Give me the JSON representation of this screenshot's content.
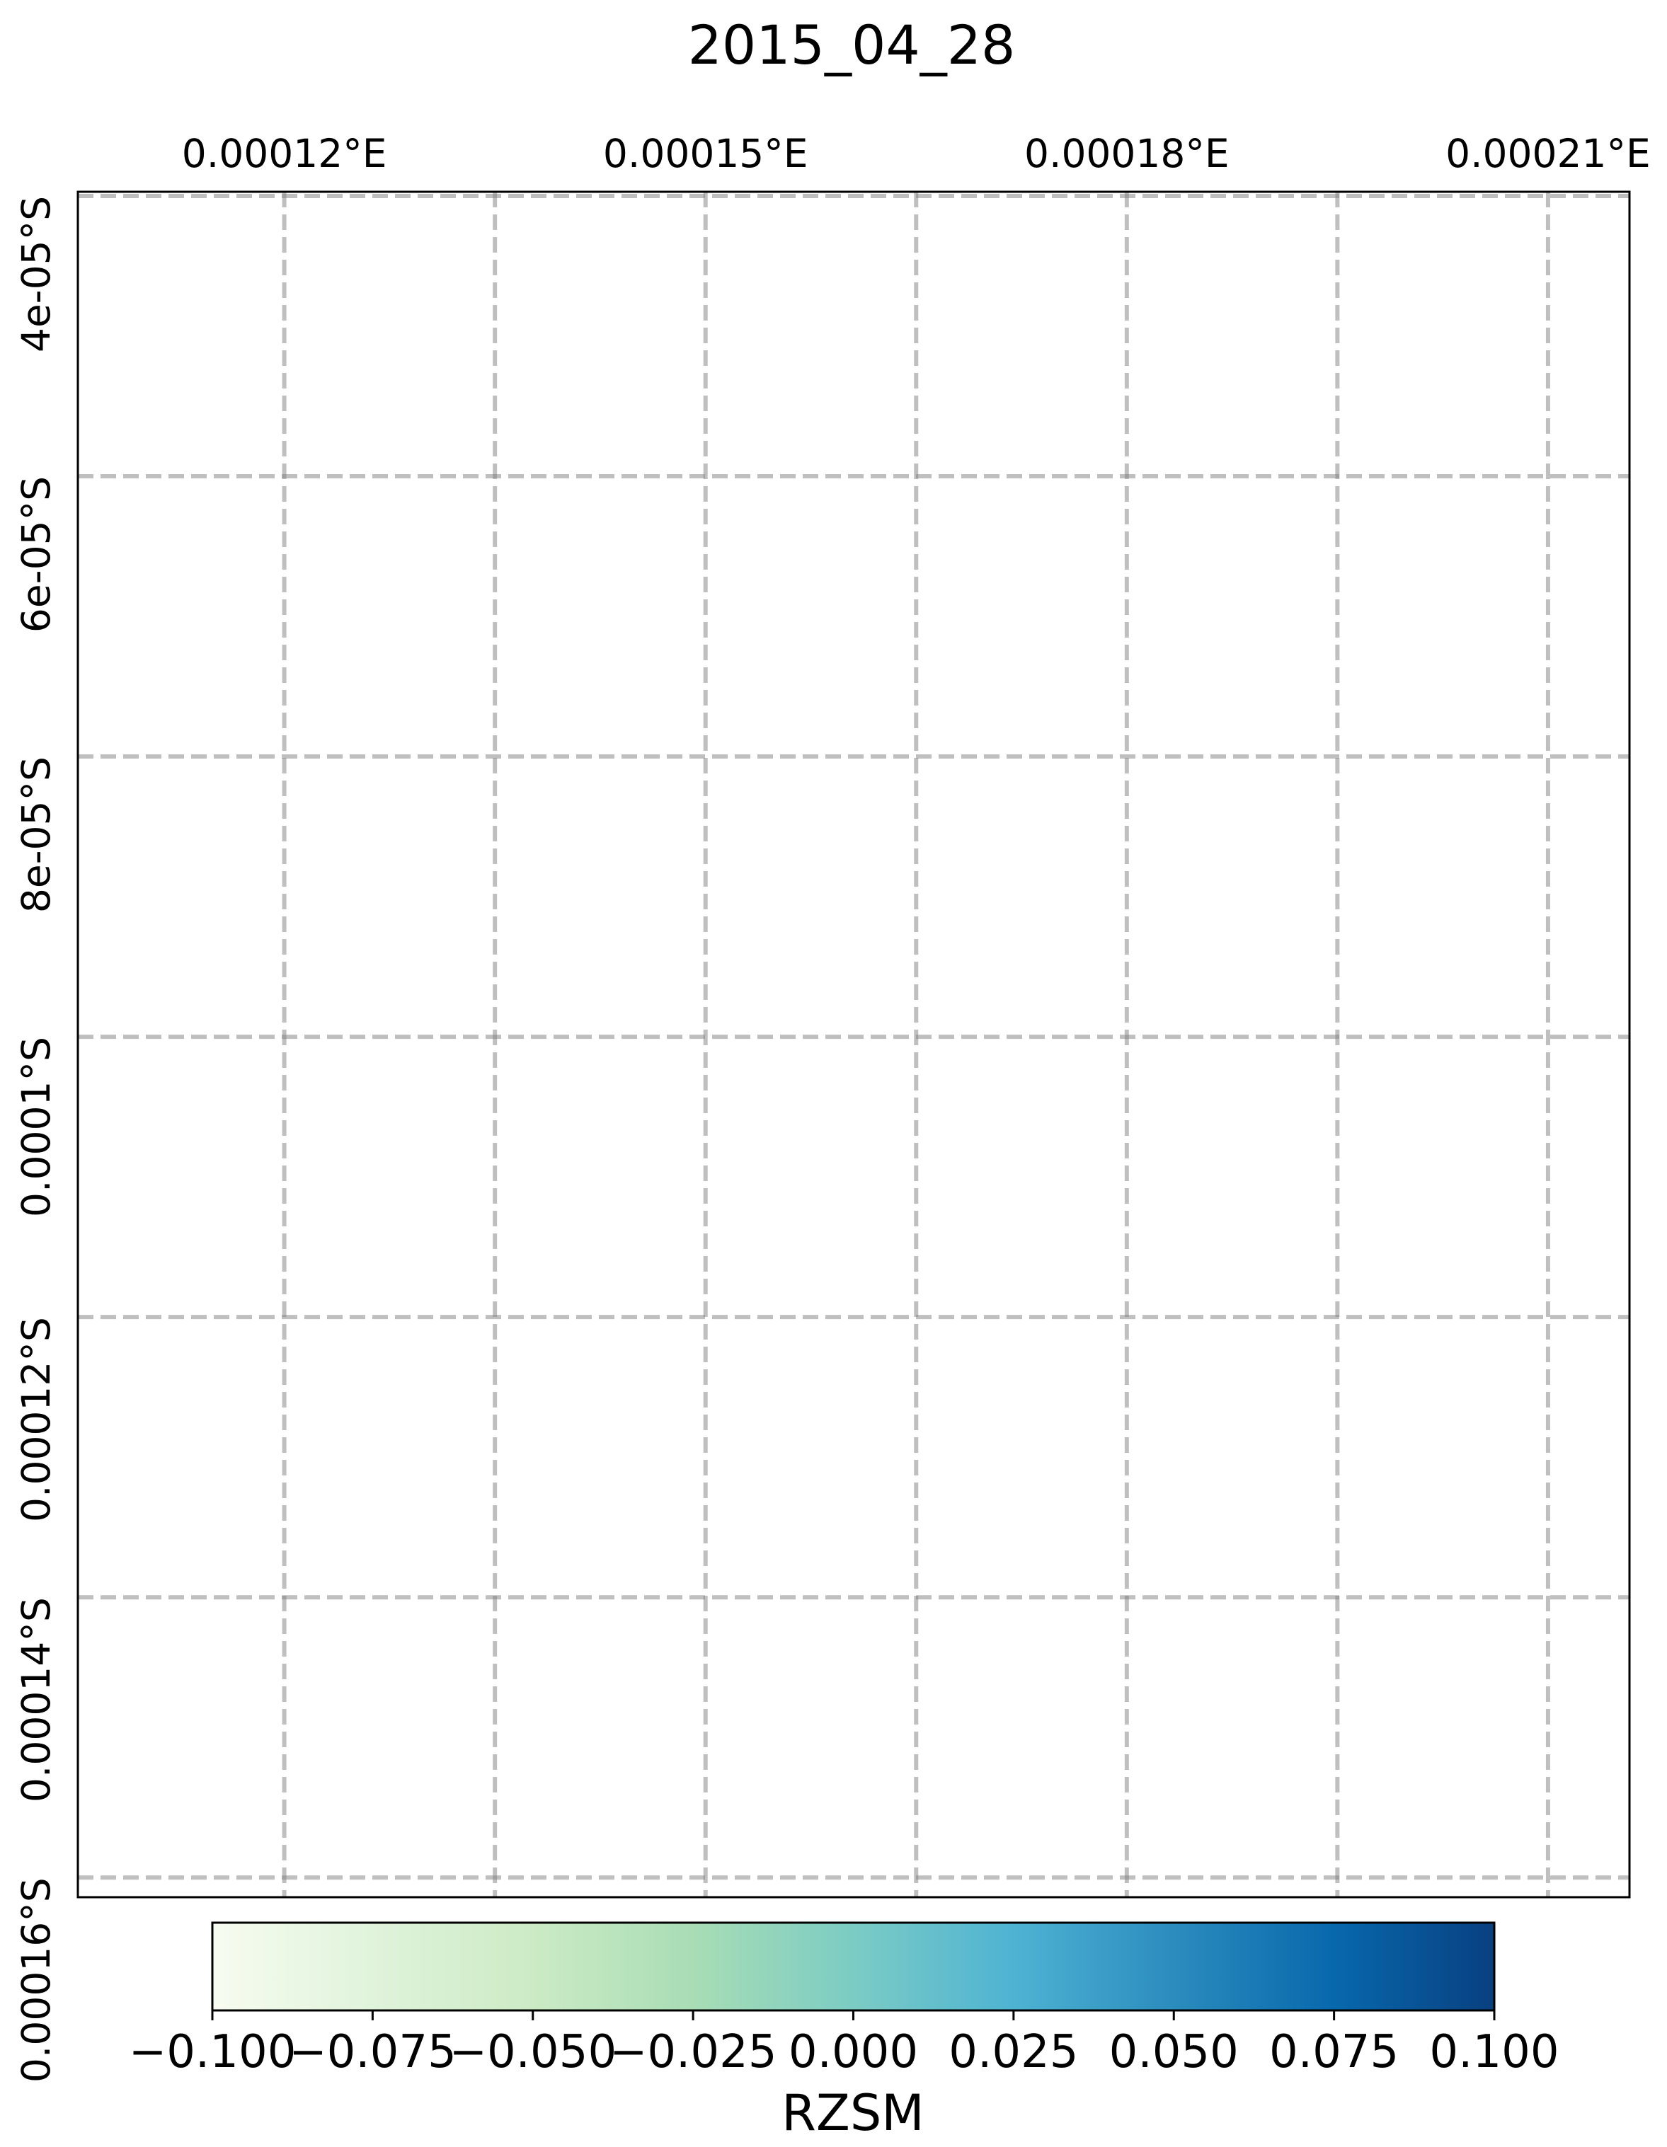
{
  "chart_data": {
    "type": "heatmap",
    "title": "2015_04_28",
    "projection": "map (lon/lat gridlines)",
    "x_axis": {
      "position": "top",
      "ticks": [
        {
          "value": 0.00012,
          "label": "0.00012°E"
        },
        {
          "value": 0.00015,
          "label": "0.00015°E"
        },
        {
          "value": 0.00018,
          "label": "0.00018°E"
        },
        {
          "value": 0.00021,
          "label": "0.00021°E"
        }
      ],
      "gridlines": [
        0.00012,
        0.000135,
        0.00015,
        0.000165,
        0.00018,
        0.000195,
        0.00021
      ],
      "xlim": [
        0.0001053,
        0.0002158
      ]
    },
    "y_axis": {
      "position": "left",
      "ticks": [
        {
          "value": -4e-05,
          "label": "4e-05°S"
        },
        {
          "value": -6e-05,
          "label": "6e-05°S"
        },
        {
          "value": -8e-05,
          "label": "8e-05°S"
        },
        {
          "value": -0.0001,
          "label": "0.0001°S"
        },
        {
          "value": -0.00012,
          "label": "0.00012°S"
        },
        {
          "value": -0.00014,
          "label": "0.00014°S"
        },
        {
          "value": -0.00016,
          "label": "0.00016°S"
        }
      ],
      "ylim": [
        -0.0001614,
        -3.97e-05
      ]
    },
    "grid": true,
    "grid_style": "dashed gray",
    "data": "empty (no colored cells rendered)",
    "colorbar": {
      "orientation": "horizontal",
      "placement": "bottom",
      "label": "RZSM",
      "range": [
        -0.1,
        0.1
      ],
      "colormap": "GnBu",
      "colors": [
        "#f7fcf0",
        "#e0f3db",
        "#ccebc5",
        "#a8ddb5",
        "#7bccc4",
        "#4eb3d3",
        "#2b8cbe",
        "#0868ac",
        "#084081"
      ],
      "ticks": [
        {
          "value": -0.1,
          "label": "−0.100"
        },
        {
          "value": -0.075,
          "label": "−0.075"
        },
        {
          "value": -0.05,
          "label": "−0.050"
        },
        {
          "value": -0.025,
          "label": "−0.025"
        },
        {
          "value": 0.0,
          "label": "0.000"
        },
        {
          "value": 0.025,
          "label": "0.025"
        },
        {
          "value": 0.05,
          "label": "0.050"
        },
        {
          "value": 0.075,
          "label": "0.075"
        },
        {
          "value": 0.1,
          "label": "0.100"
        }
      ]
    }
  }
}
